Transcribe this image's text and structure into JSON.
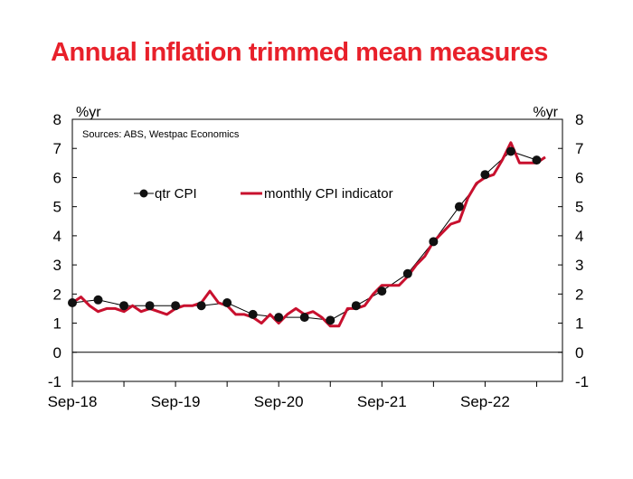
{
  "chart_data": {
    "type": "line",
    "title": "Annual inflation trimmed mean measures",
    "source_note": "Sources: ABS, Westpac Economics",
    "ylabel_left": "%yr",
    "ylabel_right": "%yr",
    "ylim": [
      -1,
      8
    ],
    "yticks": [
      "-1",
      "0",
      "1",
      "2",
      "3",
      "4",
      "5",
      "6",
      "7",
      "8"
    ],
    "x_tick_labels": [
      "Sep-18",
      "Sep-19",
      "Sep-20",
      "Sep-21",
      "Sep-22"
    ],
    "x_month_range": [
      0,
      57
    ],
    "label_months": [
      0,
      12,
      24,
      36,
      48
    ],
    "grid": false,
    "zero_line": true,
    "legend": "upper-left inside plot",
    "series": [
      {
        "name": "qtr CPI",
        "color": "#000000",
        "style": "line-markers",
        "months": [
          0,
          3,
          6,
          9,
          12,
          15,
          18,
          21,
          24,
          27,
          30,
          33,
          36,
          39,
          42,
          45,
          48,
          51,
          54
        ],
        "values": [
          1.7,
          1.8,
          1.6,
          1.6,
          1.6,
          1.6,
          1.7,
          1.3,
          1.2,
          1.2,
          1.1,
          1.6,
          2.1,
          2.7,
          3.8,
          5.0,
          6.1,
          6.9,
          6.6
        ]
      },
      {
        "name": "monthly CPI indicator",
        "color": "#c8102e",
        "style": "line",
        "months": [
          0,
          1,
          2,
          3,
          4,
          5,
          6,
          7,
          8,
          9,
          10,
          11,
          12,
          13,
          14,
          15,
          16,
          17,
          18,
          19,
          20,
          21,
          22,
          23,
          24,
          25,
          26,
          27,
          28,
          29,
          30,
          31,
          32,
          33,
          34,
          35,
          36,
          37,
          38,
          39,
          40,
          41,
          42,
          43,
          44,
          45,
          46,
          47,
          48,
          49,
          50,
          51,
          52,
          53,
          54,
          55
        ],
        "values": [
          1.7,
          1.9,
          1.6,
          1.4,
          1.5,
          1.5,
          1.4,
          1.6,
          1.4,
          1.5,
          1.4,
          1.3,
          1.5,
          1.6,
          1.6,
          1.7,
          2.1,
          1.7,
          1.6,
          1.3,
          1.3,
          1.2,
          1.0,
          1.3,
          1.0,
          1.3,
          1.5,
          1.3,
          1.4,
          1.2,
          0.9,
          0.9,
          1.5,
          1.5,
          1.6,
          2.0,
          2.3,
          2.3,
          2.3,
          2.6,
          3.0,
          3.3,
          3.8,
          4.1,
          4.4,
          4.5,
          5.3,
          5.8,
          6.0,
          6.1,
          6.6,
          7.2,
          6.5,
          6.5,
          6.5,
          6.7
        ]
      }
    ]
  }
}
